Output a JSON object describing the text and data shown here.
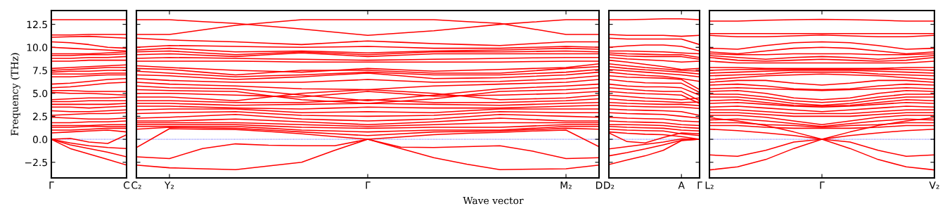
{
  "chart_data": [
    {
      "type": "line",
      "ylabel": "Frequency (THz)",
      "ylim": [
        -4.2,
        14
      ],
      "yticks": [
        {
          "value": -2.5,
          "label": "−2.5"
        },
        {
          "value": 0,
          "label": "0.0"
        },
        {
          "value": 2.5,
          "label": "2.5"
        },
        {
          "value": 5,
          "label": "5.0"
        },
        {
          "value": 7.5,
          "label": "7.5"
        },
        {
          "value": 10,
          "label": "10.0"
        },
        {
          "value": 12.5,
          "label": "12.5"
        }
      ],
      "categories": [
        "Γ",
        null,
        null,
        null,
        "C"
      ],
      "line_style": "solid",
      "ref_lines": [
        {
          "axis": "y",
          "value": 0,
          "label": null,
          "color": "#0000ff",
          "line_style": "dotted"
        }
      ],
      "series": [
        {
          "color": "#ff0000",
          "values": [
            13.0,
            13.0,
            13.0,
            13.0,
            13.0
          ]
        },
        {
          "color": "#ff0000",
          "values": [
            11.35,
            11.35,
            11.4,
            11.4,
            11.4
          ]
        },
        {
          "color": "#ff0000",
          "values": [
            11.1,
            11.15,
            11.2,
            11.1,
            11.0
          ]
        },
        {
          "color": "#ff0000",
          "values": [
            10.6,
            10.5,
            10.3,
            10.0,
            9.9
          ]
        },
        {
          "color": "#ff0000",
          "values": [
            10.0,
            9.9,
            9.8,
            9.7,
            9.6
          ]
        },
        {
          "color": "#ff0000",
          "values": [
            9.3,
            9.3,
            9.3,
            9.4,
            9.5
          ]
        },
        {
          "color": "#ff0000",
          "values": [
            9.1,
            9.1,
            9.2,
            9.2,
            9.3
          ]
        },
        {
          "color": "#ff0000",
          "values": [
            8.8,
            8.8,
            8.9,
            8.9,
            9.0
          ]
        },
        {
          "color": "#ff0000",
          "values": [
            8.5,
            8.5,
            8.6,
            8.6,
            8.6
          ]
        },
        {
          "color": "#ff0000",
          "values": [
            7.7,
            7.8,
            7.9,
            8.0,
            8.1
          ]
        },
        {
          "color": "#ff0000",
          "values": [
            7.5,
            7.6,
            7.7,
            7.8,
            7.8
          ]
        },
        {
          "color": "#ff0000",
          "values": [
            7.3,
            7.4,
            7.4,
            7.5,
            7.5
          ]
        },
        {
          "color": "#ff0000",
          "values": [
            7.1,
            7.1,
            7.1,
            7.2,
            7.2
          ]
        },
        {
          "color": "#ff0000",
          "values": [
            6.8,
            6.8,
            6.9,
            7.0,
            7.0
          ]
        },
        {
          "color": "#ff0000",
          "values": [
            6.0,
            6.1,
            6.3,
            6.5,
            6.6
          ]
        },
        {
          "color": "#ff0000",
          "values": [
            5.6,
            5.7,
            5.9,
            6.1,
            6.2
          ]
        },
        {
          "color": "#ff0000",
          "values": [
            5.3,
            5.3,
            5.2,
            5.2,
            5.2
          ]
        },
        {
          "color": "#ff0000",
          "values": [
            5.1,
            5.0,
            5.0,
            4.9,
            4.8
          ]
        },
        {
          "color": "#ff0000",
          "values": [
            4.3,
            4.4,
            4.5,
            4.5,
            4.6
          ]
        },
        {
          "color": "#ff0000",
          "values": [
            4.1,
            4.1,
            4.2,
            4.2,
            4.2
          ]
        },
        {
          "color": "#ff0000",
          "values": [
            3.8,
            3.8,
            3.8,
            3.8,
            3.9
          ]
        },
        {
          "color": "#ff0000",
          "values": [
            3.5,
            3.5,
            3.4,
            3.5,
            3.6
          ]
        },
        {
          "color": "#ff0000",
          "values": [
            3.1,
            3.0,
            3.0,
            3.1,
            3.2
          ]
        },
        {
          "color": "#ff0000",
          "values": [
            2.6,
            2.7,
            2.8,
            2.8,
            2.9
          ]
        },
        {
          "color": "#ff0000",
          "values": [
            2.4,
            2.3,
            2.2,
            2.2,
            2.3
          ]
        },
        {
          "color": "#ff0000",
          "values": [
            1.8,
            1.8,
            1.9,
            1.9,
            2.0
          ]
        },
        {
          "color": "#ff0000",
          "values": [
            1.5,
            1.5,
            1.5,
            1.6,
            1.6
          ]
        },
        {
          "color": "#ff0000",
          "values": [
            1.3,
            1.3,
            1.4,
            1.4,
            1.4
          ]
        },
        {
          "color": "#ff0000",
          "values": [
            1.0,
            1.0,
            1.1,
            1.2,
            1.2
          ]
        },
        {
          "color": "#ff0000",
          "values": [
            0.7,
            0.8,
            0.9,
            1.0,
            0.8
          ]
        },
        {
          "color": "#ff0000",
          "values": [
            0.0,
            0.1,
            -0.3,
            -0.45,
            0.5
          ]
        },
        {
          "color": "#ff0000",
          "values": [
            0.0,
            -0.4,
            -0.7,
            -0.9,
            -1.0
          ]
        },
        {
          "color": "#ff0000",
          "values": [
            0.0,
            -0.6,
            -1.0,
            -1.4,
            -1.9
          ]
        },
        {
          "color": "#ff0000",
          "values": [
            0.0,
            -1.0,
            -1.6,
            -2.2,
            -2.8
          ]
        }
      ]
    },
    {
      "type": "line",
      "xlabel": "Wave vector",
      "tick_labels": "x",
      "ylim": [
        -4.2,
        14
      ],
      "yticks": [
        {
          "value": -2.5,
          "label": null
        },
        {
          "value": 0,
          "label": null
        },
        {
          "value": 2.5,
          "label": null
        },
        {
          "value": 5,
          "label": null
        },
        {
          "value": 7.5,
          "label": null
        },
        {
          "value": 10,
          "label": null
        },
        {
          "value": 12.5,
          "label": null
        }
      ],
      "categories": [
        "C₂",
        "Y₂",
        null,
        null,
        null,
        null,
        null,
        "Γ",
        null,
        null,
        null,
        null,
        null,
        "M₂",
        "D"
      ],
      "line_style": "solid",
      "ref_lines": [
        {
          "axis": "y",
          "value": 0,
          "label": null,
          "color": "#0000ff",
          "line_style": "dotted"
        }
      ],
      "series": [
        {
          "color": "#ff0000",
          "values": [
            13.0,
            13.0,
            12.8,
            12.6,
            12.3,
            12.0,
            11.65,
            11.3,
            11.55,
            11.8,
            12.15,
            12.5,
            12.75,
            13.0,
            13.0
          ]
        },
        {
          "color": "#ff0000",
          "values": [
            11.4,
            11.4,
            11.9,
            12.4,
            12.7,
            13.0,
            13.0,
            13.0,
            13.0,
            13.0,
            12.8,
            12.6,
            12.0,
            11.4,
            11.4
          ]
        },
        {
          "color": "#ff0000",
          "values": [
            11.0,
            10.8,
            10.7,
            10.6,
            10.45,
            10.3,
            10.5,
            10.7,
            10.55,
            10.4,
            10.3,
            10.2,
            10.4,
            10.6,
            10.6
          ]
        },
        {
          "color": "#ff0000",
          "values": [
            10.0,
            10.2,
            10.15,
            10.1,
            10.05,
            10.0,
            10.05,
            10.1,
            10.0,
            9.9,
            9.9,
            9.9,
            10.0,
            10.1,
            10.0
          ]
        },
        {
          "color": "#ff0000",
          "values": [
            9.7,
            9.9,
            9.7,
            9.5,
            9.55,
            9.6,
            9.5,
            9.4,
            9.5,
            9.6,
            9.65,
            9.7,
            9.8,
            9.9,
            9.8
          ]
        },
        {
          "color": "#ff0000",
          "values": [
            9.5,
            9.6,
            9.4,
            9.2,
            9.35,
            9.5,
            9.35,
            9.2,
            9.35,
            9.5,
            9.5,
            9.5,
            9.55,
            9.6,
            9.5
          ]
        },
        {
          "color": "#ff0000",
          "values": [
            9.2,
            9.3,
            9.15,
            9.0,
            9.2,
            9.4,
            9.2,
            9.0,
            9.15,
            9.3,
            9.3,
            9.3,
            9.3,
            9.3,
            9.3
          ]
        },
        {
          "color": "#ff0000",
          "values": [
            8.8,
            8.9,
            8.85,
            8.8,
            8.75,
            8.7,
            8.65,
            8.6,
            8.65,
            8.7,
            8.75,
            8.8,
            8.85,
            8.9,
            8.9
          ]
        },
        {
          "color": "#ff0000",
          "values": [
            8.5,
            8.5,
            8.5,
            8.5,
            8.45,
            8.4,
            8.4,
            8.4,
            8.4,
            8.4,
            8.4,
            8.4,
            8.45,
            8.5,
            8.5
          ]
        },
        {
          "color": "#ff0000",
          "values": [
            8.0,
            7.8,
            7.65,
            7.5,
            7.4,
            7.3,
            7.5,
            7.7,
            7.55,
            7.4,
            7.5,
            7.6,
            7.7,
            7.8,
            8.2
          ]
        },
        {
          "color": "#ff0000",
          "values": [
            7.7,
            7.6,
            7.3,
            7.0,
            7.25,
            7.5,
            7.5,
            7.5,
            7.35,
            7.2,
            7.2,
            7.2,
            7.45,
            7.7,
            7.9
          ]
        },
        {
          "color": "#ff0000",
          "values": [
            7.4,
            7.2,
            7.0,
            6.8,
            6.9,
            7.0,
            7.15,
            7.3,
            7.15,
            7.0,
            7.0,
            7.0,
            7.15,
            7.3,
            7.6
          ]
        },
        {
          "color": "#ff0000",
          "values": [
            7.0,
            6.9,
            6.7,
            6.5,
            6.65,
            6.8,
            7.0,
            7.2,
            6.9,
            6.6,
            6.65,
            6.7,
            6.85,
            7.0,
            7.3
          ]
        },
        {
          "color": "#ff0000",
          "values": [
            6.6,
            6.4,
            6.3,
            6.2,
            6.2,
            6.2,
            6.35,
            6.5,
            6.35,
            6.2,
            6.25,
            6.3,
            6.45,
            6.6,
            6.9
          ]
        },
        {
          "color": "#ff0000",
          "values": [
            6.2,
            6.0,
            5.9,
            5.8,
            5.65,
            5.5,
            5.45,
            5.4,
            5.6,
            5.8,
            5.9,
            6.0,
            6.1,
            6.2,
            6.5
          ]
        },
        {
          "color": "#ff0000",
          "values": [
            5.8,
            5.6,
            5.55,
            5.5,
            5.15,
            4.8,
            4.5,
            4.2,
            4.5,
            4.8,
            5.15,
            5.5,
            5.65,
            5.8,
            6.0
          ]
        },
        {
          "color": "#ff0000",
          "values": [
            5.4,
            5.3,
            5.25,
            5.2,
            4.75,
            4.3,
            4.1,
            3.9,
            4.15,
            4.4,
            4.8,
            5.2,
            5.3,
            5.4,
            5.6
          ]
        },
        {
          "color": "#ff0000",
          "values": [
            5.0,
            5.0,
            4.9,
            4.8,
            4.7,
            4.6,
            4.9,
            5.2,
            4.95,
            4.7,
            4.75,
            4.8,
            4.9,
            5.0,
            5.2
          ]
        },
        {
          "color": "#ff0000",
          "values": [
            4.6,
            4.6,
            4.4,
            4.2,
            4.6,
            5.0,
            5.2,
            5.4,
            5.2,
            5.0,
            4.65,
            4.3,
            4.4,
            4.5,
            4.8
          ]
        },
        {
          "color": "#ff0000",
          "values": [
            4.2,
            4.2,
            4.1,
            4.0,
            4.0,
            4.0,
            4.15,
            4.3,
            4.15,
            4.0,
            4.0,
            4.0,
            4.1,
            4.2,
            4.4
          ]
        },
        {
          "color": "#ff0000",
          "values": [
            3.9,
            3.9,
            3.8,
            3.7,
            3.75,
            3.8,
            3.85,
            3.9,
            3.85,
            3.8,
            3.75,
            3.7,
            3.8,
            3.9,
            4.0
          ]
        },
        {
          "color": "#ff0000",
          "values": [
            3.6,
            3.6,
            3.5,
            3.4,
            3.35,
            3.3,
            3.4,
            3.5,
            3.45,
            3.4,
            3.4,
            3.4,
            3.5,
            3.6,
            3.7
          ]
        },
        {
          "color": "#ff0000",
          "values": [
            3.2,
            3.3,
            3.3,
            3.3,
            3.1,
            2.9,
            2.95,
            3.0,
            2.95,
            2.9,
            3.1,
            3.3,
            3.3,
            3.3,
            3.3
          ]
        },
        {
          "color": "#ff0000",
          "values": [
            2.8,
            2.9,
            2.95,
            3.0,
            2.8,
            2.6,
            2.55,
            2.5,
            2.55,
            2.6,
            2.8,
            3.0,
            2.95,
            2.9,
            2.9
          ]
        },
        {
          "color": "#ff0000",
          "values": [
            2.3,
            2.4,
            2.55,
            2.7,
            2.45,
            2.2,
            2.1,
            2.0,
            2.1,
            2.2,
            2.45,
            2.7,
            2.6,
            2.5,
            2.4
          ]
        },
        {
          "color": "#ff0000",
          "values": [
            2.0,
            2.0,
            2.1,
            2.2,
            2.05,
            1.9,
            1.75,
            1.6,
            1.75,
            1.9,
            2.1,
            2.3,
            2.15,
            2.0,
            2.0
          ]
        },
        {
          "color": "#ff0000",
          "values": [
            1.8,
            1.8,
            1.8,
            1.8,
            1.7,
            1.6,
            1.5,
            1.4,
            1.5,
            1.6,
            1.7,
            1.8,
            1.8,
            1.8,
            1.8
          ]
        },
        {
          "color": "#ff0000",
          "values": [
            1.6,
            1.6,
            1.6,
            1.6,
            1.45,
            1.3,
            1.25,
            1.2,
            1.25,
            1.3,
            1.3,
            1.3,
            1.45,
            1.6,
            1.6
          ]
        },
        {
          "color": "#ff0000",
          "values": [
            1.4,
            1.4,
            1.4,
            1.4,
            1.2,
            1.0,
            0.9,
            0.8,
            0.9,
            1.0,
            1.0,
            1.0,
            1.2,
            1.4,
            1.4
          ]
        },
        {
          "color": "#ff0000",
          "values": [
            1.1,
            1.3,
            1.25,
            1.2,
            1.0,
            0.8,
            0.6,
            0.4,
            0.6,
            0.8,
            0.85,
            0.9,
            1.05,
            1.2,
            1.1
          ]
        },
        {
          "color": "#ff0000",
          "values": [
            -0.9,
            1.15,
            1.1,
            1.05,
            0.85,
            0.6,
            0.3,
            0.0,
            0.25,
            0.5,
            0.65,
            0.75,
            0.9,
            1.0,
            -0.8
          ]
        },
        {
          "color": "#ff0000",
          "values": [
            -1.9,
            -2.1,
            -1.0,
            -0.5,
            -0.65,
            -0.7,
            -0.7,
            0.0,
            -0.85,
            -0.9,
            -0.8,
            -0.7,
            -1.3,
            -2.1,
            -2.0
          ]
        },
        {
          "color": "#ff0000",
          "values": [
            -2.8,
            -3.1,
            -3.2,
            -3.3,
            -2.9,
            -2.5,
            -1.2,
            0.0,
            -1.0,
            -2.0,
            -2.7,
            -3.3,
            -3.25,
            -3.2,
            -2.8
          ]
        }
      ]
    },
    {
      "type": "line",
      "tick_labels": "x",
      "ylim": [
        -4.2,
        14
      ],
      "yticks": [
        {
          "value": -2.5,
          "label": null
        },
        {
          "value": 0,
          "label": null
        },
        {
          "value": 2.5,
          "label": null
        },
        {
          "value": 5,
          "label": null
        },
        {
          "value": 7.5,
          "label": null
        },
        {
          "value": 10,
          "label": null
        },
        {
          "value": 12.5,
          "label": null
        }
      ],
      "categories": [
        "D₂",
        null,
        null,
        null,
        "A",
        "Γ"
      ],
      "line_style": "solid",
      "ref_lines": [
        {
          "axis": "y",
          "value": 0,
          "label": null,
          "color": "#0000ff",
          "line_style": "dotted"
        }
      ],
      "series": [
        {
          "color": "#ff0000",
          "values": [
            13.0,
            13.0,
            13.05,
            13.1,
            13.1,
            13.0
          ]
        },
        {
          "color": "#ff0000",
          "values": [
            11.4,
            11.3,
            11.3,
            11.3,
            11.2,
            11.3
          ]
        },
        {
          "color": "#ff0000",
          "values": [
            11.0,
            10.9,
            10.9,
            10.9,
            10.9,
            10.3
          ]
        },
        {
          "color": "#ff0000",
          "values": [
            10.0,
            10.15,
            10.25,
            10.25,
            10.1,
            9.6
          ]
        },
        {
          "color": "#ff0000",
          "values": [
            9.6,
            9.6,
            9.55,
            9.5,
            9.4,
            9.3
          ]
        },
        {
          "color": "#ff0000",
          "values": [
            9.4,
            9.3,
            9.25,
            9.2,
            9.2,
            8.9
          ]
        },
        {
          "color": "#ff0000",
          "values": [
            9.2,
            9.05,
            9.0,
            9.0,
            9.0,
            8.7
          ]
        },
        {
          "color": "#ff0000",
          "values": [
            8.9,
            8.75,
            8.65,
            8.55,
            8.4,
            8.5
          ]
        },
        {
          "color": "#ff0000",
          "values": [
            8.6,
            8.4,
            8.15,
            7.9,
            7.6,
            7.7
          ]
        },
        {
          "color": "#ff0000",
          "values": [
            8.2,
            8.0,
            7.8,
            7.65,
            7.5,
            7.4
          ]
        },
        {
          "color": "#ff0000",
          "values": [
            7.9,
            7.7,
            7.55,
            7.45,
            7.3,
            7.1
          ]
        },
        {
          "color": "#ff0000",
          "values": [
            7.6,
            7.45,
            7.3,
            7.15,
            7.0,
            6.8
          ]
        },
        {
          "color": "#ff0000",
          "values": [
            7.3,
            7.1,
            6.95,
            6.85,
            6.6,
            6.3
          ]
        },
        {
          "color": "#ff0000",
          "values": [
            6.9,
            6.75,
            6.7,
            6.65,
            6.5,
            5.4
          ]
        },
        {
          "color": "#ff0000",
          "values": [
            6.5,
            6.3,
            6.15,
            6.1,
            6.1,
            5.1
          ]
        },
        {
          "color": "#ff0000",
          "values": [
            6.0,
            5.8,
            5.7,
            5.7,
            5.6,
            4.8
          ]
        },
        {
          "color": "#ff0000",
          "values": [
            5.6,
            5.45,
            5.3,
            5.2,
            5.2,
            4.2
          ]
        },
        {
          "color": "#ff0000",
          "values": [
            5.2,
            5.05,
            4.95,
            4.9,
            4.8,
            3.9
          ]
        },
        {
          "color": "#ff0000",
          "values": [
            4.8,
            4.65,
            4.5,
            4.4,
            4.3,
            4.5
          ]
        },
        {
          "color": "#ff0000",
          "values": [
            4.4,
            4.25,
            4.15,
            4.1,
            4.0,
            4.05
          ]
        },
        {
          "color": "#ff0000",
          "values": [
            4.0,
            3.9,
            3.85,
            3.8,
            3.8,
            3.65
          ]
        },
        {
          "color": "#ff0000",
          "values": [
            3.7,
            3.6,
            3.55,
            3.5,
            3.5,
            3.35
          ]
        },
        {
          "color": "#ff0000",
          "values": [
            3.3,
            3.2,
            3.15,
            3.1,
            3.0,
            2.6
          ]
        },
        {
          "color": "#ff0000",
          "values": [
            2.9,
            2.8,
            2.75,
            2.7,
            2.5,
            2.3
          ]
        },
        {
          "color": "#ff0000",
          "values": [
            2.4,
            2.3,
            2.25,
            2.2,
            2.0,
            1.9
          ]
        },
        {
          "color": "#ff0000",
          "values": [
            2.0,
            1.9,
            1.85,
            1.8,
            1.6,
            1.5
          ]
        },
        {
          "color": "#ff0000",
          "values": [
            1.6,
            1.6,
            1.55,
            1.5,
            1.3,
            1.2
          ]
        },
        {
          "color": "#ff0000",
          "values": [
            1.4,
            1.3,
            1.25,
            1.2,
            1.0,
            0.9
          ]
        },
        {
          "color": "#ff0000",
          "values": [
            1.1,
            1.0,
            0.95,
            0.9,
            0.6,
            0.4
          ]
        },
        {
          "color": "#ff0000",
          "values": [
            0.8,
            0.65,
            0.55,
            0.5,
            0.3,
            0.0
          ]
        },
        {
          "color": "#ff0000",
          "values": [
            0.7,
            -0.25,
            -0.4,
            0.2,
            0.7,
            0.6
          ]
        },
        {
          "color": "#ff0000",
          "values": [
            -1.05,
            -0.8,
            -0.55,
            -0.3,
            0.05,
            0.0
          ]
        },
        {
          "color": "#ff0000",
          "values": [
            -1.8,
            -1.45,
            -1.05,
            -0.6,
            -0.1,
            0.0
          ]
        },
        {
          "color": "#ff0000",
          "values": [
            -2.75,
            -2.25,
            -1.8,
            -1.2,
            -0.15,
            0.0
          ]
        }
      ]
    },
    {
      "type": "line",
      "tick_labels": "x",
      "ylim": [
        -4.2,
        14
      ],
      "yticks": [
        {
          "value": -2.5,
          "label": null
        },
        {
          "value": 0,
          "label": null
        },
        {
          "value": 2.5,
          "label": null
        },
        {
          "value": 5,
          "label": null
        },
        {
          "value": 7.5,
          "label": null
        },
        {
          "value": 10,
          "label": null
        },
        {
          "value": 12.5,
          "label": null
        }
      ],
      "categories": [
        "L₂",
        null,
        null,
        null,
        "Γ",
        null,
        null,
        null,
        "V₂"
      ],
      "line_style": "solid",
      "ref_lines": [
        {
          "axis": "y",
          "value": 0,
          "label": null,
          "color": "#0000ff",
          "line_style": "dotted"
        }
      ],
      "series": [
        {
          "color": "#ff0000",
          "values": [
            12.85,
            12.85,
            12.95,
            13.0,
            13.05,
            13.0,
            12.95,
            12.85,
            12.85
          ]
        },
        {
          "color": "#ff0000",
          "values": [
            11.5,
            11.5,
            11.5,
            11.5,
            11.5,
            11.5,
            11.5,
            11.5,
            11.5
          ]
        },
        {
          "color": "#ff0000",
          "values": [
            11.3,
            11.15,
            11.15,
            11.25,
            11.35,
            11.25,
            11.15,
            11.15,
            11.3
          ]
        },
        {
          "color": "#ff0000",
          "values": [
            9.9,
            9.8,
            10.2,
            10.5,
            10.6,
            10.5,
            10.2,
            9.8,
            9.9
          ]
        },
        {
          "color": "#ff0000",
          "values": [
            9.5,
            9.3,
            9.6,
            9.9,
            10.0,
            9.9,
            9.6,
            9.3,
            9.5
          ]
        },
        {
          "color": "#ff0000",
          "values": [
            9.3,
            9.2,
            9.2,
            9.3,
            9.3,
            9.3,
            9.2,
            9.2,
            9.3
          ]
        },
        {
          "color": "#ff0000",
          "values": [
            9.1,
            8.9,
            8.7,
            8.9,
            9.0,
            8.9,
            8.7,
            8.9,
            9.1
          ]
        },
        {
          "color": "#ff0000",
          "values": [
            8.9,
            8.6,
            8.5,
            8.6,
            8.7,
            8.6,
            8.5,
            8.6,
            8.9
          ]
        },
        {
          "color": "#ff0000",
          "values": [
            8.5,
            8.3,
            8.3,
            8.3,
            8.3,
            8.3,
            8.3,
            8.3,
            8.5
          ]
        },
        {
          "color": "#ff0000",
          "values": [
            7.8,
            7.8,
            7.7,
            7.7,
            7.7,
            7.7,
            7.7,
            7.8,
            7.8
          ]
        },
        {
          "color": "#ff0000",
          "values": [
            7.5,
            7.6,
            7.6,
            7.6,
            7.6,
            7.6,
            7.6,
            7.6,
            7.5
          ]
        },
        {
          "color": "#ff0000",
          "values": [
            7.2,
            7.3,
            7.4,
            7.5,
            7.5,
            7.5,
            7.4,
            7.3,
            7.2
          ]
        },
        {
          "color": "#ff0000",
          "values": [
            6.9,
            7.0,
            7.1,
            7.3,
            7.3,
            7.3,
            7.1,
            7.0,
            6.9
          ]
        },
        {
          "color": "#ff0000",
          "values": [
            6.5,
            6.7,
            6.9,
            7.0,
            7.1,
            7.0,
            6.9,
            6.7,
            6.5
          ]
        },
        {
          "color": "#ff0000",
          "values": [
            6.2,
            6.4,
            6.4,
            6.1,
            5.9,
            6.1,
            6.4,
            6.4,
            6.2
          ]
        },
        {
          "color": "#ff0000",
          "values": [
            5.9,
            6.0,
            5.8,
            5.5,
            5.4,
            5.5,
            5.8,
            6.0,
            5.9
          ]
        },
        {
          "color": "#ff0000",
          "values": [
            5.5,
            5.6,
            5.5,
            5.4,
            5.3,
            5.4,
            5.5,
            5.6,
            5.5
          ]
        },
        {
          "color": "#ff0000",
          "values": [
            5.2,
            5.3,
            5.0,
            4.5,
            4.3,
            4.5,
            5.0,
            5.3,
            5.2
          ]
        },
        {
          "color": "#ff0000",
          "values": [
            4.9,
            4.9,
            4.6,
            4.2,
            4.0,
            4.2,
            4.6,
            4.9,
            4.9
          ]
        },
        {
          "color": "#ff0000",
          "values": [
            4.6,
            4.6,
            4.3,
            3.9,
            3.7,
            3.9,
            4.3,
            4.6,
            4.6
          ]
        },
        {
          "color": "#ff0000",
          "values": [
            4.2,
            4.3,
            4.0,
            3.7,
            3.6,
            3.7,
            4.0,
            4.3,
            4.2
          ]
        },
        {
          "color": "#ff0000",
          "values": [
            3.9,
            4.0,
            3.8,
            3.6,
            3.5,
            3.6,
            3.8,
            4.0,
            3.9
          ]
        },
        {
          "color": "#ff0000",
          "values": [
            3.5,
            3.6,
            3.4,
            3.2,
            3.0,
            3.2,
            3.4,
            3.6,
            3.5
          ]
        },
        {
          "color": "#ff0000",
          "values": [
            3.2,
            3.2,
            3.0,
            2.8,
            2.8,
            2.8,
            3.0,
            3.2,
            3.2
          ]
        },
        {
          "color": "#ff0000",
          "values": [
            2.9,
            2.9,
            2.7,
            2.5,
            2.5,
            2.5,
            2.7,
            2.9,
            2.9
          ]
        },
        {
          "color": "#ff0000",
          "values": [
            2.6,
            2.6,
            2.4,
            2.0,
            1.6,
            2.0,
            2.4,
            2.6,
            2.6
          ]
        },
        {
          "color": "#ff0000",
          "values": [
            2.1,
            2.2,
            2.0,
            1.7,
            1.4,
            1.7,
            2.0,
            2.2,
            2.1
          ]
        },
        {
          "color": "#ff0000",
          "values": [
            1.8,
            1.8,
            1.6,
            1.5,
            1.3,
            1.5,
            1.6,
            1.8,
            1.8
          ]
        },
        {
          "color": "#ff0000",
          "values": [
            1.5,
            1.5,
            1.3,
            1.2,
            1.2,
            1.2,
            1.3,
            1.5,
            1.5
          ]
        },
        {
          "color": "#ff0000",
          "values": [
            2.35,
            2.0,
            1.5,
            0.8,
            0.0,
            0.8,
            1.5,
            2.0,
            2.35
          ]
        },
        {
          "color": "#ff0000",
          "values": [
            1.1,
            0.95,
            0.7,
            0.4,
            0.0,
            0.4,
            0.7,
            0.95,
            1.1
          ]
        },
        {
          "color": "#ff0000",
          "values": [
            -1.7,
            -1.85,
            -1.2,
            -0.3,
            0.0,
            -0.3,
            -1.2,
            -1.85,
            -1.7
          ]
        },
        {
          "color": "#ff0000",
          "values": [
            -3.33,
            -3.0,
            -2.2,
            -1.0,
            0.0,
            -1.0,
            -2.2,
            -3.0,
            -3.33
          ]
        }
      ]
    }
  ]
}
